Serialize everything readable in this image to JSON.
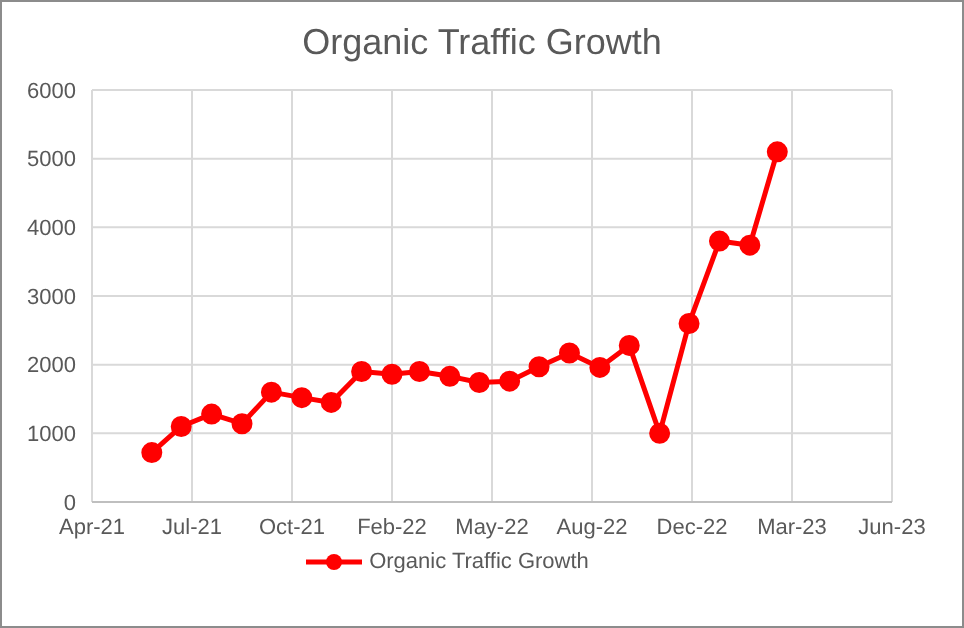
{
  "chart_data": {
    "type": "line",
    "title": "Organic Traffic Growth",
    "x": [
      "2021-06",
      "2021-07",
      "2021-08",
      "2021-09",
      "2021-10",
      "2021-11",
      "2021-12",
      "2022-01",
      "2022-02",
      "2022-03",
      "2022-04",
      "2022-05",
      "2022-06",
      "2022-07",
      "2022-08",
      "2022-09",
      "2022-10",
      "2022-11",
      "2022-12",
      "2023-01",
      "2023-02",
      "2023-03"
    ],
    "series": [
      {
        "name": "Organic Traffic Growth",
        "color": "#ff0000",
        "values": [
          720,
          1100,
          1280,
          1140,
          1600,
          1520,
          1450,
          1900,
          1860,
          1900,
          1830,
          1740,
          1760,
          1970,
          2170,
          1960,
          2280,
          1000,
          2600,
          3800,
          3740,
          5100
        ]
      }
    ],
    "xlim": [
      "2021-04-01",
      "2023-06-26"
    ],
    "xticks": [
      {
        "value": "2021-04-01",
        "label": "Apr-21"
      },
      {
        "value": "2021-07-12",
        "label": "Jul-21"
      },
      {
        "value": "2021-10-22",
        "label": "Oct-21"
      },
      {
        "value": "2022-02-01",
        "label": "Feb-22"
      },
      {
        "value": "2022-05-14",
        "label": "May-22"
      },
      {
        "value": "2022-08-24",
        "label": "Aug-22"
      },
      {
        "value": "2022-12-04",
        "label": "Dec-22"
      },
      {
        "value": "2023-03-16",
        "label": "Mar-23"
      },
      {
        "value": "2023-06-26",
        "label": "Jun-23"
      }
    ],
    "ylim": [
      0,
      6000
    ],
    "yticks": [
      0,
      1000,
      2000,
      3000,
      4000,
      5000,
      6000
    ],
    "grid": true,
    "legend": "bottom",
    "marker": "circle",
    "line_style": "solid"
  }
}
